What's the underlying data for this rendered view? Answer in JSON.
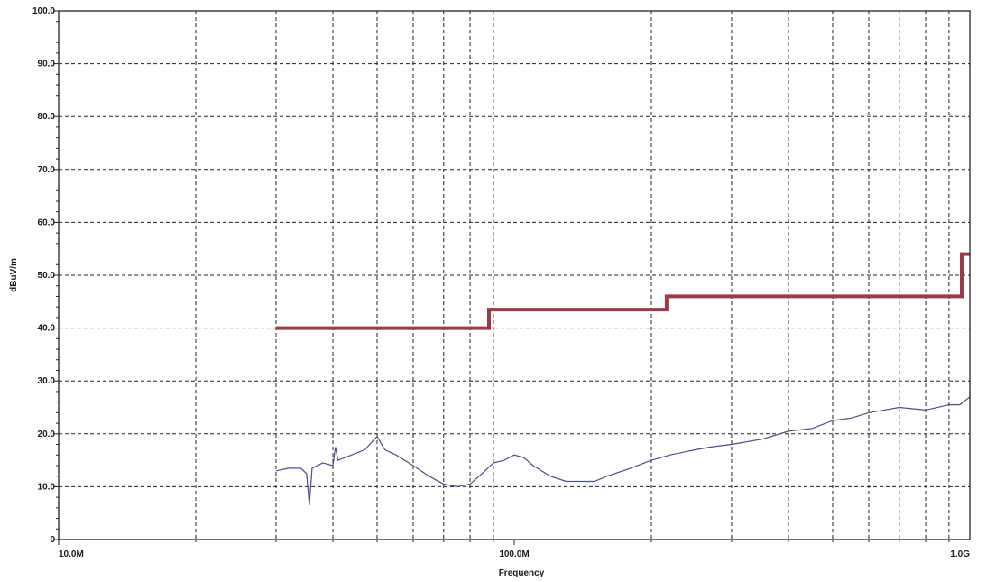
{
  "chart_data": {
    "type": "line",
    "title": "",
    "xlabel": "Frequency",
    "ylabel": "dBuV/m",
    "x_scale": "log",
    "xlim": [
      10000000,
      1000000000
    ],
    "ylim": [
      0,
      100
    ],
    "grid": true,
    "x_ticks": [
      {
        "value": 10000000,
        "label": "10.0M"
      },
      {
        "value": 100000000,
        "label": "100.0M"
      },
      {
        "value": 1000000000,
        "label": "1.0G"
      }
    ],
    "y_ticks": [
      {
        "value": 0,
        "label": "0"
      },
      {
        "value": 10,
        "label": "10.0"
      },
      {
        "value": 20,
        "label": "20.0"
      },
      {
        "value": 30,
        "label": "30.0"
      },
      {
        "value": 40,
        "label": "40.0"
      },
      {
        "value": 50,
        "label": "50.0"
      },
      {
        "value": 60,
        "label": "60.0"
      },
      {
        "value": 70,
        "label": "70.0"
      },
      {
        "value": 80,
        "label": "80.0"
      },
      {
        "value": 90,
        "label": "90.0"
      },
      {
        "value": 100,
        "label": "100.0"
      }
    ],
    "series": [
      {
        "kind": "limit",
        "color": "#9a3b45",
        "x": [
          30000000,
          88000000,
          88000000,
          216000000,
          216000000,
          960000000,
          960000000,
          1000000000
        ],
        "y": [
          40.0,
          40.0,
          43.5,
          43.5,
          46.0,
          46.0,
          54.0,
          54.0
        ]
      },
      {
        "kind": "measurement",
        "color": "#4a4f86",
        "x": [
          30000000,
          32000000,
          34000000,
          35000000,
          35500000,
          36000000,
          38000000,
          40000000,
          40500000,
          41000000,
          44000000,
          47000000,
          50000000,
          52000000,
          55000000,
          60000000,
          65000000,
          70000000,
          75000000,
          80000000,
          85000000,
          90000000,
          95000000,
          100000000,
          105000000,
          110000000,
          120000000,
          130000000,
          140000000,
          150000000,
          160000000,
          180000000,
          200000000,
          220000000,
          250000000,
          270000000,
          300000000,
          350000000,
          400000000,
          450000000,
          500000000,
          550000000,
          600000000,
          700000000,
          800000000,
          900000000,
          950000000,
          1000000000
        ],
        "y": [
          13.0,
          13.5,
          13.5,
          12.5,
          6.5,
          13.5,
          14.5,
          14.0,
          17.5,
          15.0,
          16.0,
          17.0,
          19.5,
          17.0,
          16.0,
          14.0,
          12.0,
          10.5,
          10.0,
          10.5,
          12.5,
          14.5,
          15.0,
          16.0,
          15.5,
          14.0,
          12.0,
          11.0,
          11.0,
          11.0,
          12.0,
          13.5,
          15.0,
          16.0,
          17.0,
          17.5,
          18.0,
          19.0,
          20.5,
          21.0,
          22.5,
          23.0,
          24.0,
          25.0,
          24.5,
          25.5,
          25.5,
          27.0
        ]
      }
    ]
  }
}
